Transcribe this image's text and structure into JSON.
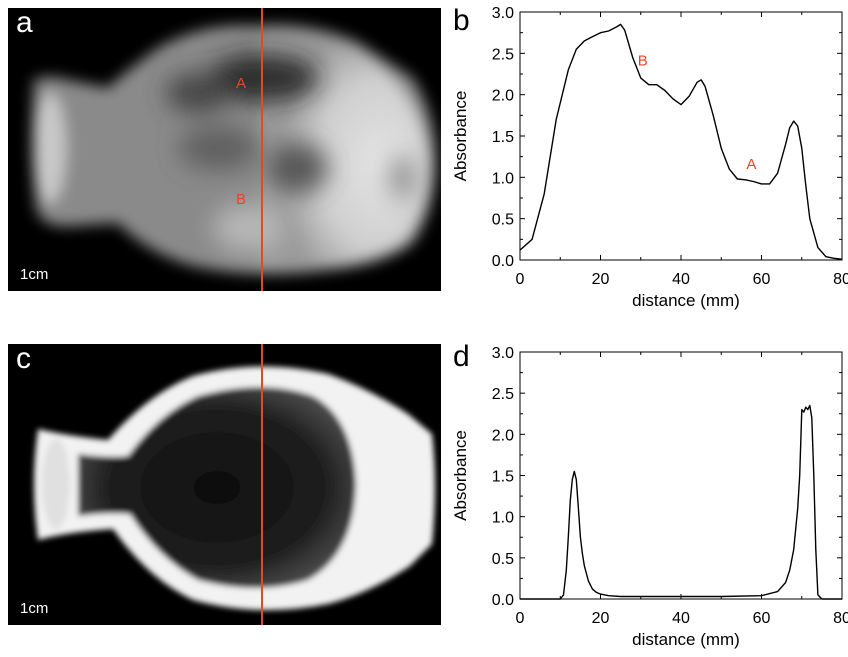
{
  "panels": {
    "a": {
      "letter": "a",
      "scale": "1cm",
      "label_A": "A",
      "label_B": "B"
    },
    "b": {
      "letter": "b"
    },
    "c": {
      "letter": "c",
      "scale": "1cm"
    },
    "d": {
      "letter": "d"
    }
  },
  "colors": {
    "line": "#e8452a",
    "annotation": "#e8452a",
    "trace": "#000000"
  },
  "chart_data": [
    {
      "type": "line",
      "ylabel": "Absorbance",
      "xlabel": "distance (mm)",
      "xlim": [
        0,
        80
      ],
      "ylim": [
        0,
        3.0
      ],
      "xticks": [
        0,
        20,
        40,
        60,
        80
      ],
      "yticks": [
        0.0,
        0.5,
        1.0,
        1.5,
        2.0,
        2.5,
        3.0
      ],
      "ytick_labels": [
        "0.0",
        "0.5",
        "1.0",
        "1.5",
        "2.0",
        "2.5",
        "3.0"
      ],
      "x": [
        0,
        3,
        6,
        9,
        12,
        14,
        16,
        18,
        20,
        22,
        24,
        25,
        26,
        28,
        30,
        32,
        34,
        36,
        38,
        40,
        42,
        44,
        45,
        46,
        48,
        50,
        52,
        54,
        56,
        58,
        60,
        62,
        64,
        66,
        67,
        68,
        69,
        70,
        71,
        72,
        74,
        76,
        78,
        80
      ],
      "y": [
        0.12,
        0.25,
        0.8,
        1.7,
        2.3,
        2.55,
        2.65,
        2.7,
        2.75,
        2.77,
        2.82,
        2.85,
        2.78,
        2.45,
        2.2,
        2.12,
        2.12,
        2.05,
        1.95,
        1.88,
        1.98,
        2.15,
        2.18,
        2.1,
        1.75,
        1.35,
        1.1,
        0.98,
        0.97,
        0.95,
        0.92,
        0.92,
        1.05,
        1.4,
        1.6,
        1.68,
        1.62,
        1.35,
        0.9,
        0.5,
        0.15,
        0.04,
        0.02,
        0.01
      ],
      "annotations": [
        {
          "text": "B",
          "x": 30.5,
          "y": 2.35
        },
        {
          "text": "A",
          "x": 57.5,
          "y": 1.1
        }
      ]
    },
    {
      "type": "line",
      "ylabel": "Absorbance",
      "xlabel": "distance (mm)",
      "xlim": [
        0,
        80
      ],
      "ylim": [
        0,
        3.0
      ],
      "xticks": [
        0,
        20,
        40,
        60,
        80
      ],
      "yticks": [
        0.0,
        0.5,
        1.0,
        1.5,
        2.0,
        2.5,
        3.0
      ],
      "ytick_labels": [
        "0.0",
        "0.5",
        "1.0",
        "1.5",
        "2.0",
        "2.5",
        "3.0"
      ],
      "x": [
        0,
        10,
        10.8,
        11.5,
        12,
        12.5,
        13,
        13.5,
        14,
        14.5,
        15,
        15.5,
        16,
        17,
        18,
        19,
        20,
        22,
        25,
        30,
        40,
        50,
        60,
        64,
        66,
        67,
        68,
        69,
        69.5,
        70,
        70.5,
        71,
        71.5,
        72,
        72.5,
        73,
        73.5,
        74,
        75,
        80
      ],
      "y": [
        0.0,
        0.0,
        0.05,
        0.35,
        0.75,
        1.2,
        1.45,
        1.55,
        1.45,
        1.1,
        0.75,
        0.55,
        0.4,
        0.22,
        0.12,
        0.08,
        0.06,
        0.04,
        0.03,
        0.03,
        0.03,
        0.03,
        0.04,
        0.09,
        0.2,
        0.35,
        0.6,
        1.1,
        1.5,
        2.3,
        2.27,
        2.33,
        2.3,
        2.35,
        2.2,
        1.5,
        0.6,
        0.05,
        0.0,
        0.0
      ],
      "annotations": []
    }
  ]
}
